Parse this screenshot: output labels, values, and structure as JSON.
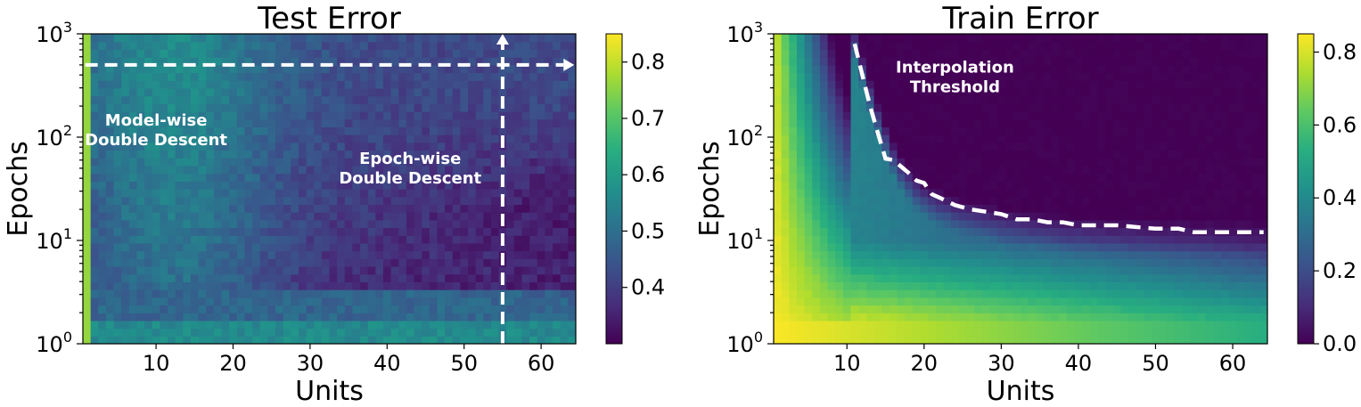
{
  "chart_data": [
    {
      "type": "heatmap",
      "title": "Test Error",
      "xlabel": "Units",
      "ylabel": "Epochs",
      "x_range": [
        0.5,
        64.5
      ],
      "y_range": [
        1,
        1000
      ],
      "y_scale": "log",
      "x_ticks": [
        10,
        20,
        30,
        40,
        50,
        60
      ],
      "x_tick_labels": [
        "10",
        "20",
        "30",
        "40",
        "50",
        "60"
      ],
      "y_ticks": [
        1,
        10,
        100,
        1000
      ],
      "y_tick_labels": [
        {
          "base": "10",
          "exp": "0"
        },
        {
          "base": "10",
          "exp": "1"
        },
        {
          "base": "10",
          "exp": "2"
        },
        {
          "base": "10",
          "exp": "3"
        }
      ],
      "colormap": "viridis",
      "colorbar": {
        "range": [
          0.3,
          0.85
        ],
        "ticks": [
          0.4,
          0.5,
          0.6,
          0.7,
          0.8
        ],
        "tick_labels": [
          "0.4",
          "0.5",
          "0.6",
          "0.7",
          "0.8"
        ]
      },
      "grid": false,
      "annotations": [
        {
          "name": "model-wise",
          "lines": [
            "Model-wise",
            "Double Descent"
          ],
          "x": 10,
          "y": 130
        },
        {
          "name": "epoch-wise",
          "lines": [
            "Epoch-wise",
            "Double Descent"
          ],
          "x": 43,
          "y": 55
        }
      ],
      "arrows": [
        {
          "name": "horizontal-arrow",
          "from": [
            0.8,
            500
          ],
          "to": [
            64.3,
            500
          ]
        },
        {
          "name": "vertical-arrow",
          "from": [
            55,
            1
          ],
          "to": [
            55,
            1000
          ]
        }
      ]
    },
    {
      "type": "heatmap",
      "title": "Train Error",
      "xlabel": "Units",
      "ylabel": "Epochs",
      "x_range": [
        0.5,
        64.5
      ],
      "y_range": [
        1,
        1000
      ],
      "y_scale": "log",
      "x_ticks": [
        10,
        20,
        30,
        40,
        50,
        60
      ],
      "x_tick_labels": [
        "10",
        "20",
        "30",
        "40",
        "50",
        "60"
      ],
      "y_ticks": [
        1,
        10,
        100,
        1000
      ],
      "y_tick_labels": [
        {
          "base": "10",
          "exp": "0"
        },
        {
          "base": "10",
          "exp": "1"
        },
        {
          "base": "10",
          "exp": "2"
        },
        {
          "base": "10",
          "exp": "3"
        }
      ],
      "colormap": "viridis",
      "colorbar": {
        "range": [
          0.0,
          0.85
        ],
        "ticks": [
          0.0,
          0.2,
          0.4,
          0.6,
          0.8
        ],
        "tick_labels": [
          "0.0",
          "0.2",
          "0.4",
          "0.6",
          "0.8"
        ]
      },
      "grid": false,
      "annotations": [
        {
          "name": "interpolation-threshold",
          "lines": [
            "Interpolation",
            "Threshold"
          ],
          "x": 24,
          "y": 420
        }
      ],
      "threshold_curve": {
        "x": [
          11,
          12,
          13,
          14,
          15,
          16,
          17,
          18,
          19,
          20,
          21,
          22,
          24,
          26,
          28,
          30,
          32,
          34,
          36,
          38,
          40,
          45,
          50,
          53,
          55,
          60,
          64
        ],
        "y": [
          800,
          400,
          200,
          110,
          62,
          60,
          52,
          45,
          38,
          36,
          28,
          26,
          22,
          20,
          19,
          18,
          16,
          16,
          15,
          15,
          14,
          14,
          13,
          13,
          12,
          12,
          12
        ]
      }
    }
  ]
}
